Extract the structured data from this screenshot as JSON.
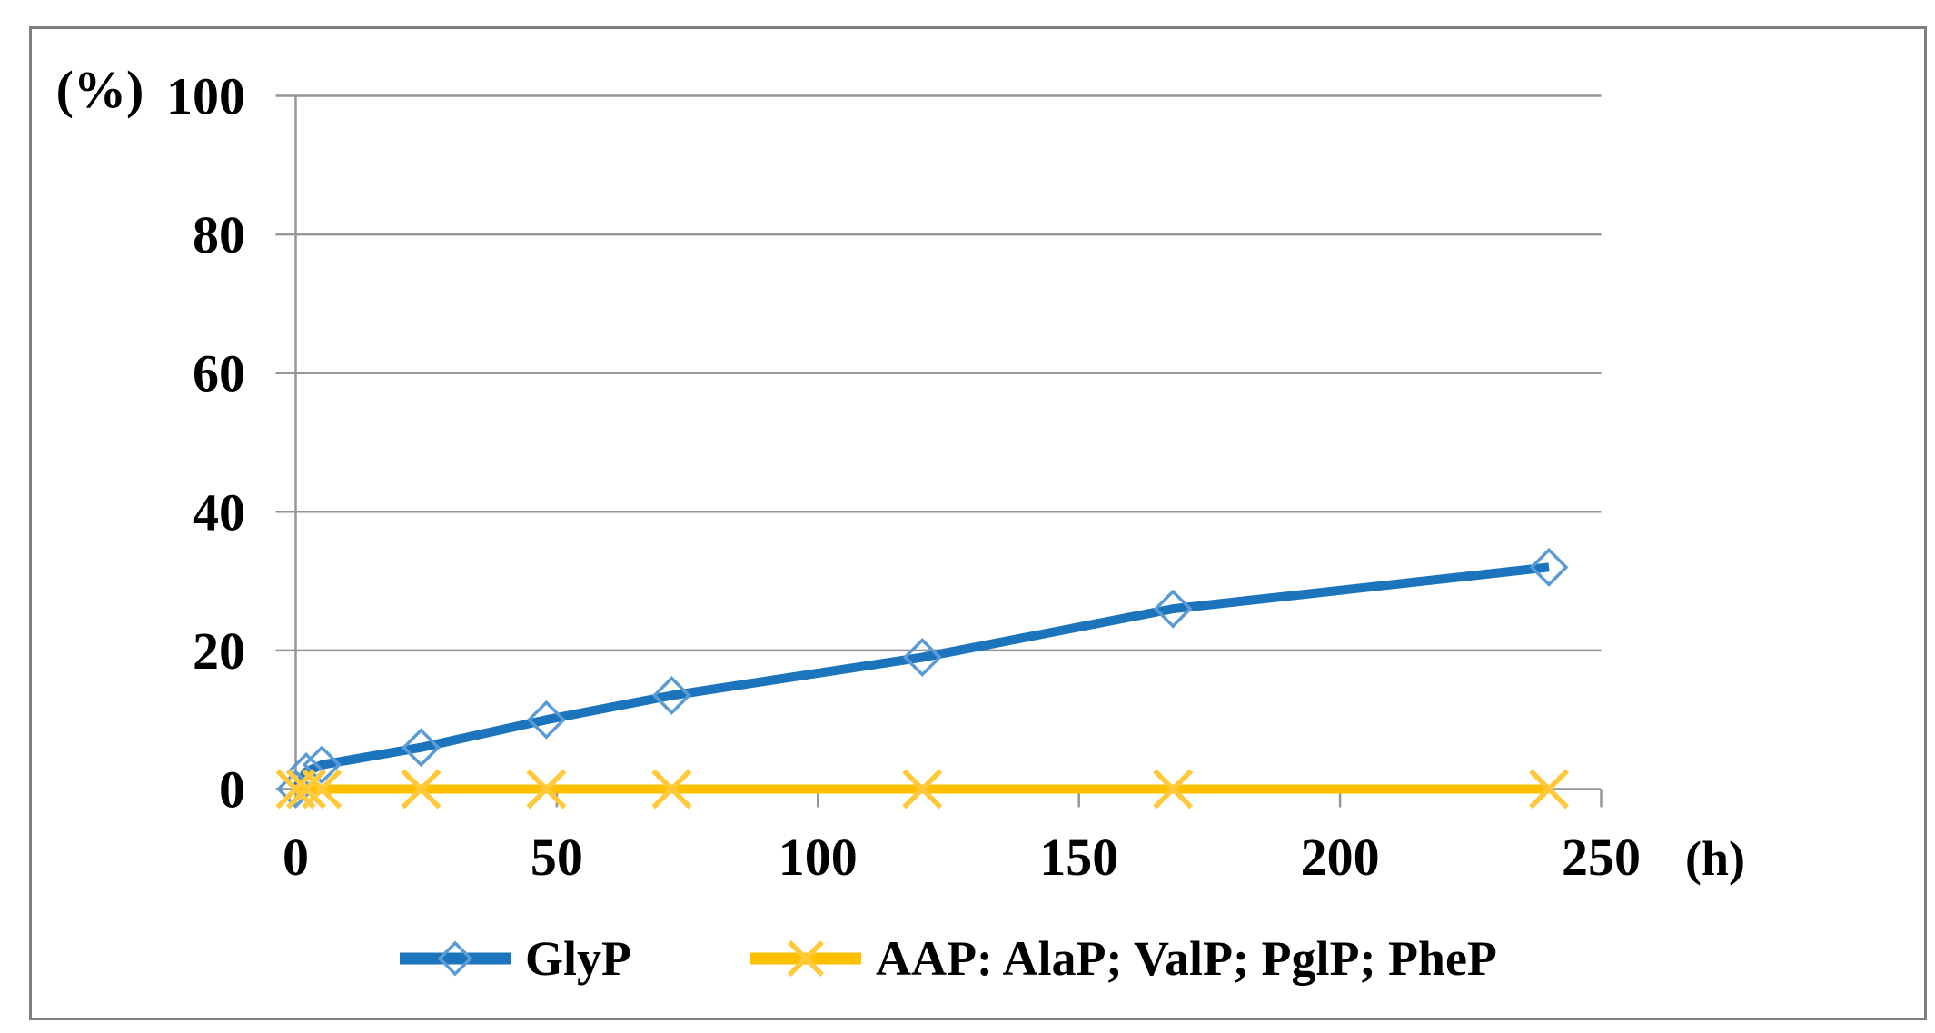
{
  "figure": {
    "background": "#FFFFFF",
    "border_color": "#7F7F7F"
  },
  "chart_data": {
    "type": "line",
    "title": "",
    "ylabel": "(%)",
    "xlabel": "(h)",
    "xlim": [
      0,
      250
    ],
    "ylim": [
      0,
      100
    ],
    "x_ticks": [
      0,
      50,
      100,
      150,
      200,
      250
    ],
    "y_ticks": [
      0,
      20,
      40,
      60,
      80,
      100
    ],
    "grid": "horizontal",
    "gridline_color": "#969696",
    "axis_color": "#969696",
    "legend_position": "bottom-center",
    "series": [
      {
        "name": "GlyP",
        "color": "#1C75BC",
        "marker": "diamond",
        "marker_color": "#5B9BD5",
        "x": [
          0,
          2,
          5,
          24,
          48,
          72,
          120,
          168,
          240
        ],
        "y": [
          0,
          2.5,
          3.5,
          6,
          10,
          13.5,
          19,
          26,
          32
        ]
      },
      {
        "name": "AAP: AlaP; ValP; PglP; PheP",
        "color": "#FFC000",
        "marker": "x",
        "marker_color": "#FFC93A",
        "x": [
          0,
          2,
          5,
          24,
          48,
          72,
          120,
          168,
          240
        ],
        "y": [
          0,
          0,
          0,
          0,
          0,
          0,
          0,
          0,
          0
        ]
      }
    ]
  }
}
